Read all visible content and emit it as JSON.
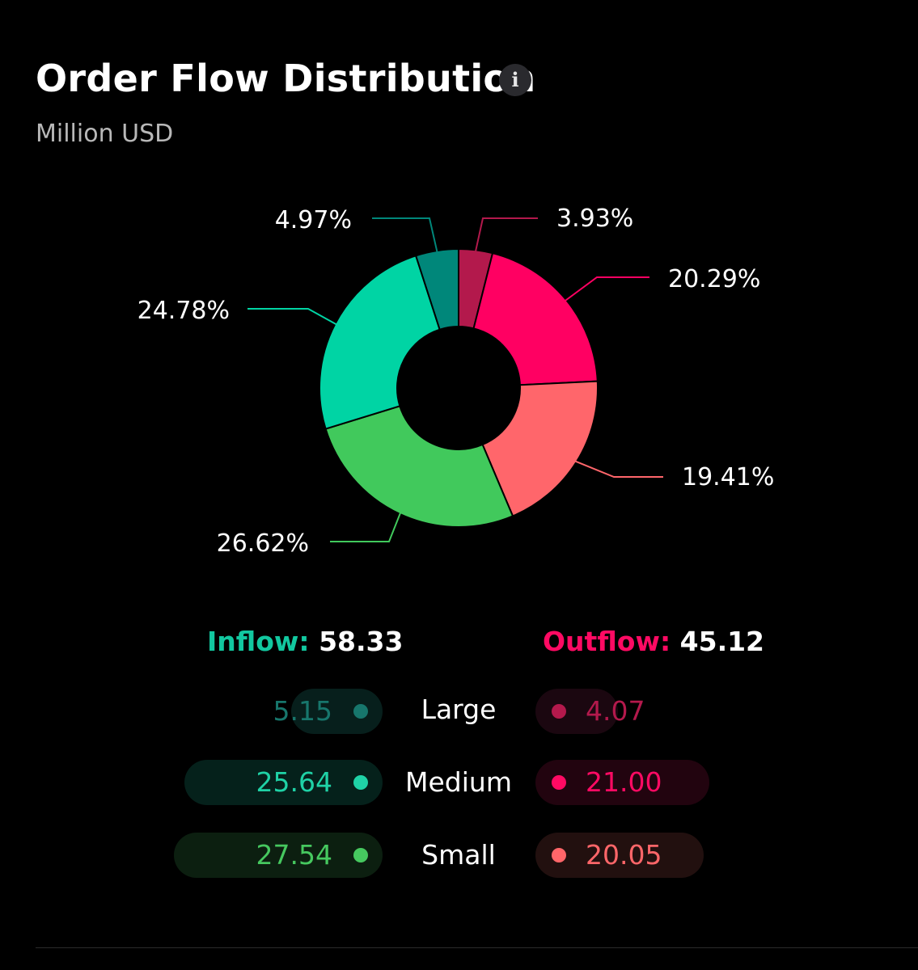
{
  "header": {
    "title": "Order Flow Distribution",
    "info_icon": "i",
    "subtitle": "Million USD"
  },
  "chart_data": {
    "type": "pie",
    "title": "Order Flow Distribution",
    "unit": "Million USD",
    "slices": [
      {
        "name": "Large Outflow",
        "value": 3.93,
        "label": "3.93%",
        "color": "#b3194c"
      },
      {
        "name": "Medium Outflow",
        "value": 20.29,
        "label": "20.29%",
        "color": "#ff0062"
      },
      {
        "name": "Small Outflow",
        "value": 19.41,
        "label": "19.41%",
        "color": "#ff666b"
      },
      {
        "name": "Small Inflow",
        "value": 26.62,
        "label": "26.62%",
        "color": "#41c95c"
      },
      {
        "name": "Medium Inflow",
        "value": 24.78,
        "label": "24.78%",
        "color": "#00d4a4"
      },
      {
        "name": "Large Inflow",
        "value": 4.97,
        "label": "4.97%",
        "color": "#00877a"
      }
    ]
  },
  "summary": {
    "inflow_label": "Inflow:",
    "inflow_value": "58.33",
    "outflow_label": "Outflow:",
    "outflow_value": "45.12"
  },
  "rows": [
    {
      "label": "Large",
      "inflow": "5.15",
      "outflow": "4.07"
    },
    {
      "label": "Medium",
      "inflow": "25.64",
      "outflow": "21.00"
    },
    {
      "label": "Small",
      "inflow": "27.54",
      "outflow": "20.05"
    }
  ],
  "colors": {
    "inflow_large": "#17766c",
    "inflow_medium": "#1fd2a6",
    "inflow_small": "#46c85f",
    "outflow_large": "#b3194c",
    "outflow_medium": "#ff0a63",
    "outflow_small": "#ff6669"
  }
}
